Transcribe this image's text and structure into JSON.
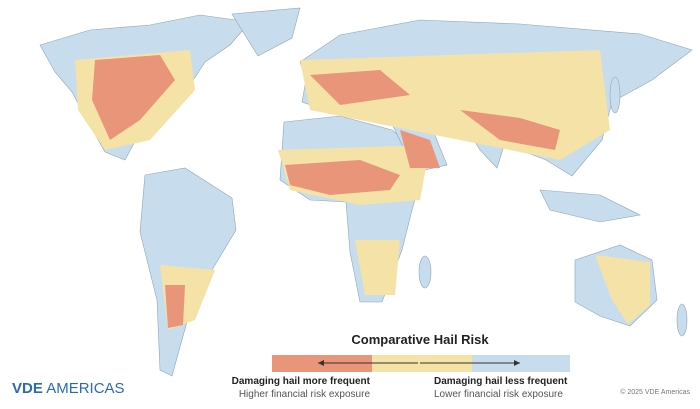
{
  "legend": {
    "title": "Comparative Hail Risk",
    "left": {
      "heading": "Damaging hail more frequent",
      "subheading": "Higher financial risk exposure"
    },
    "right": {
      "heading": "Damaging hail less frequent",
      "subheading": "Lower financial risk exposure"
    }
  },
  "logo": {
    "brand": "VDE",
    "name": "AMERICAS"
  },
  "copyright": "© 2025 VDE Americas"
}
